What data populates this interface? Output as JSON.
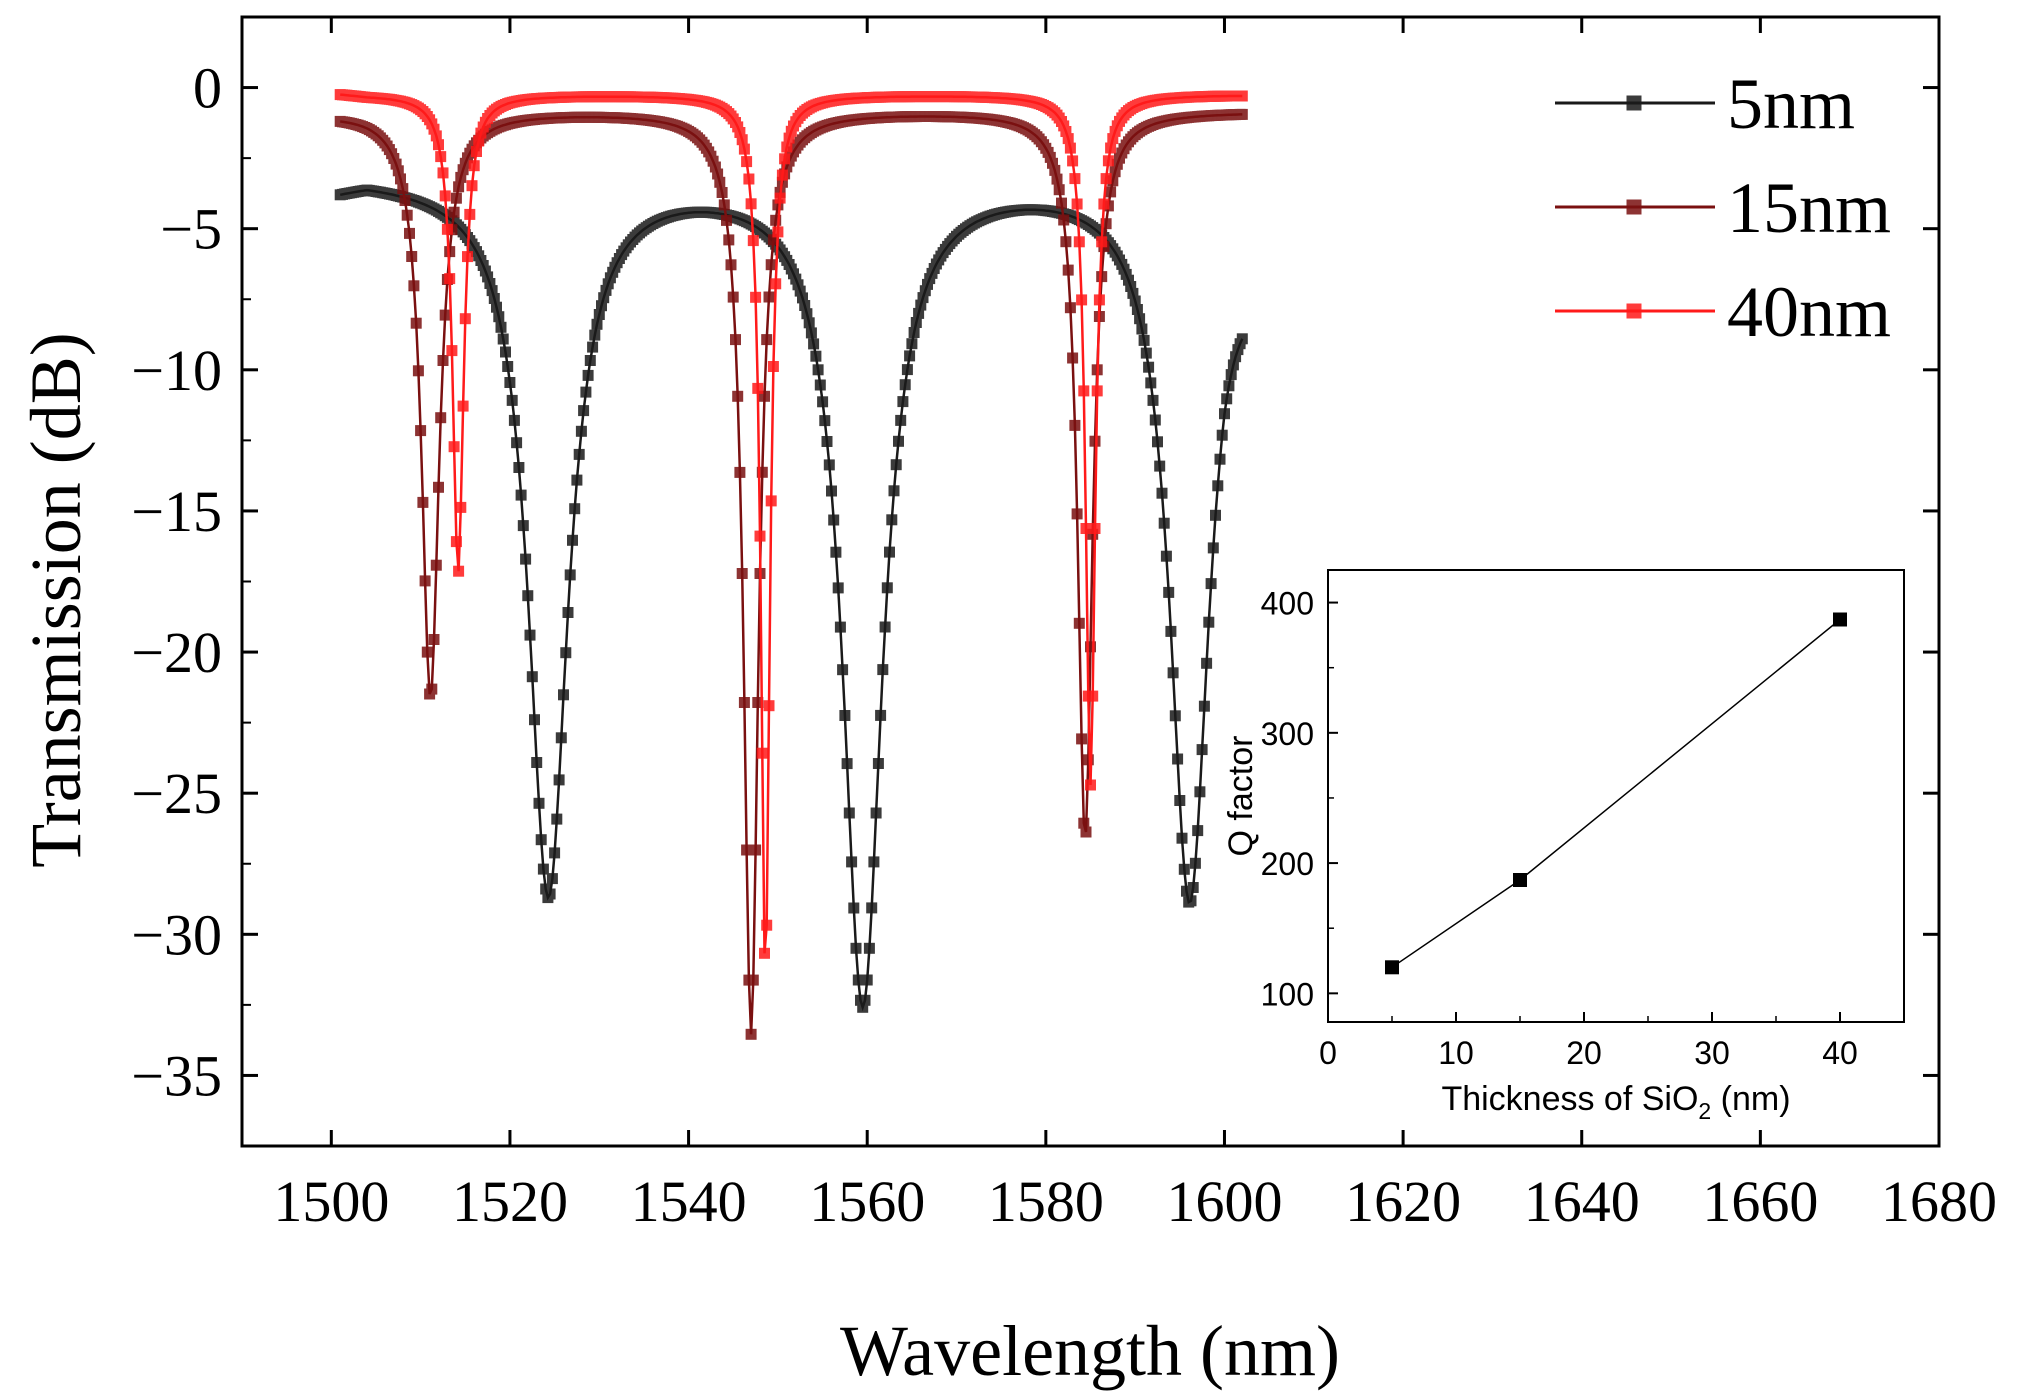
{
  "chart_data": [
    {
      "type": "line",
      "xlabel": "Wavelength (nm)",
      "ylabel": "Transmission (dB)",
      "xlim": [
        1490,
        1680
      ],
      "ylim": [
        -37.5,
        2.5
      ],
      "xticks": [
        1500,
        1520,
        1540,
        1560,
        1580,
        1600,
        1620,
        1640,
        1660,
        1680
      ],
      "yticks": [
        0,
        -5,
        -10,
        -15,
        -20,
        -25,
        -30,
        -35
      ],
      "xtick_labels": [
        "1500",
        "1520",
        "1540",
        "1560",
        "1580",
        "1600",
        "1620",
        "1640",
        "1660",
        "1680"
      ],
      "ytick_labels": [
        "0",
        "−5",
        "−10",
        "−15",
        "−20",
        "−25",
        "−30",
        "−35"
      ],
      "legend_position": "top-right",
      "markers": "square",
      "series": [
        {
          "name": "5nm",
          "color": "#1a1a1a",
          "x_range": [
            1501,
            1602
          ],
          "baseline": -3.1,
          "edge_values": [
            -3.8,
            -8.9
          ],
          "dips": [
            {
              "center": 1524.3,
              "depth": -28.5,
              "fwhm": 5.4
            },
            {
              "center": 1559.5,
              "depth": -32.3,
              "fwhm": 5.4
            },
            {
              "center": 1596.1,
              "depth": -28.7,
              "fwhm": 5.4
            }
          ]
        },
        {
          "name": "15nm",
          "color": "#7a1010",
          "x_range": [
            1501,
            1602
          ],
          "baseline": -0.85,
          "edge_values": [
            -1.2,
            -0.95
          ],
          "dips": [
            {
              "center": 1511.1,
              "depth": -21.6,
              "fwhm": 2.4
            },
            {
              "center": 1547.0,
              "depth": -33.5,
              "fwhm": 2.0
            },
            {
              "center": 1584.4,
              "depth": -26.6,
              "fwhm": 2.0
            }
          ]
        },
        {
          "name": "40nm",
          "color": "#ff1a1a",
          "x_range": [
            1501,
            1602
          ],
          "baseline": -0.25,
          "edge_values": [
            -0.25,
            -0.3
          ],
          "dips": [
            {
              "center": 1514.2,
              "depth": -17.2,
              "fwhm": 1.5
            },
            {
              "center": 1548.6,
              "depth": -31.5,
              "fwhm": 1.2
            },
            {
              "center": 1585.0,
              "depth": -24.7,
              "fwhm": 1.3
            }
          ]
        }
      ]
    },
    {
      "type": "scatter",
      "xlabel_main": "Thickness of SiO",
      "xlabel_sub": "2",
      "xlabel_tail": " (nm)",
      "ylabel": "Q factor",
      "xlim": [
        0,
        45
      ],
      "ylim": [
        78,
        425
      ],
      "xticks": [
        0,
        10,
        20,
        30,
        40
      ],
      "yticks": [
        100,
        200,
        300,
        400
      ],
      "xtick_labels": [
        "0",
        "10",
        "20",
        "30",
        "40"
      ],
      "ytick_labels": [
        "100",
        "200",
        "300",
        "400"
      ],
      "marker_color": "#000000",
      "line_color": "#000000",
      "points": [
        {
          "x": 5,
          "y": 120
        },
        {
          "x": 15,
          "y": 187
        },
        {
          "x": 40,
          "y": 387
        }
      ]
    }
  ]
}
